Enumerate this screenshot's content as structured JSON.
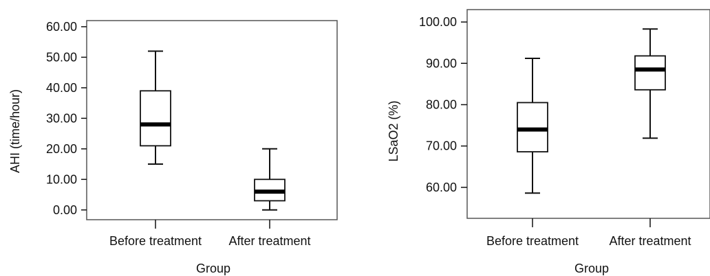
{
  "chart_data": [
    {
      "type": "box",
      "title": "",
      "xlabel": "Group",
      "ylabel": "AHI (time/hour)",
      "categories": [
        "Before treatment",
        "After treatment"
      ],
      "yticks": [
        "0.00",
        "10.00",
        "20.00",
        "30.00",
        "40.00",
        "50.00",
        "60.00"
      ],
      "ylim": [
        -3.2,
        62
      ],
      "boxes": [
        {
          "min": 15,
          "q1": 21,
          "median": 28,
          "q3": 39,
          "max": 52
        },
        {
          "min": 0,
          "q1": 3,
          "median": 6,
          "q3": 10,
          "max": 20
        }
      ],
      "grid": false,
      "legend": "none"
    },
    {
      "type": "box",
      "title": "",
      "xlabel": "Group",
      "ylabel": "LSaO2 (%)",
      "categories": [
        "Before treatment",
        "After treatment"
      ],
      "yticks": [
        "60.00",
        "70.00",
        "80.00",
        "90.00",
        "100.00"
      ],
      "ylim": [
        52.5,
        103
      ],
      "boxes": [
        {
          "min": 58.6,
          "q1": 68.6,
          "median": 74.0,
          "q3": 80.5,
          "max": 91.2
        },
        {
          "min": 71.9,
          "q1": 83.6,
          "median": 88.5,
          "q3": 91.8,
          "max": 98.3
        }
      ],
      "grid": false,
      "legend": "none"
    }
  ]
}
